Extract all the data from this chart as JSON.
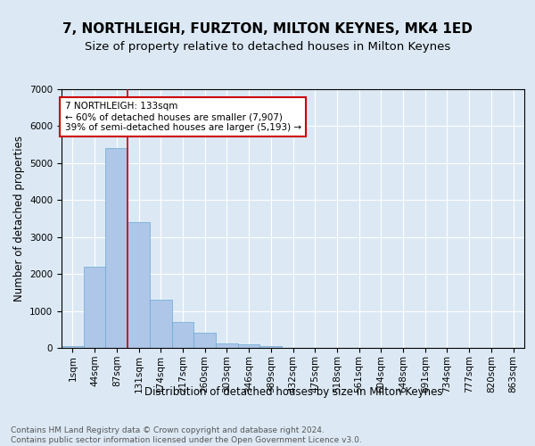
{
  "title1": "7, NORTHLEIGH, FURZTON, MILTON KEYNES, MK4 1ED",
  "title2": "Size of property relative to detached houses in Milton Keynes",
  "xlabel": "Distribution of detached houses by size in Milton Keynes",
  "ylabel": "Number of detached properties",
  "categories": [
    "1sqm",
    "44sqm",
    "87sqm",
    "131sqm",
    "174sqm",
    "217sqm",
    "260sqm",
    "303sqm",
    "346sqm",
    "389sqm",
    "432sqm",
    "475sqm",
    "518sqm",
    "561sqm",
    "604sqm",
    "648sqm",
    "691sqm",
    "734sqm",
    "777sqm",
    "820sqm",
    "863sqm"
  ],
  "values": [
    50,
    2200,
    5400,
    3400,
    1300,
    700,
    400,
    130,
    100,
    50,
    0,
    0,
    0,
    0,
    0,
    0,
    0,
    0,
    0,
    0,
    0
  ],
  "bar_color": "#aec6e8",
  "bar_edge_color": "#6aaad4",
  "vline_x": 3,
  "vline_color": "#cc0000",
  "annotation_text": "7 NORTHLEIGH: 133sqm\n← 60% of detached houses are smaller (7,907)\n39% of semi-detached houses are larger (5,193) →",
  "annotation_box_color": "#ffffff",
  "annotation_border_color": "#cc0000",
  "ylim": [
    0,
    7000
  ],
  "yticks": [
    0,
    1000,
    2000,
    3000,
    4000,
    5000,
    6000,
    7000
  ],
  "background_color": "#dce9f5",
  "plot_bg_color": "#dce9f5",
  "footer_text": "Contains HM Land Registry data © Crown copyright and database right 2024.\nContains public sector information licensed under the Open Government Licence v3.0.",
  "title1_fontsize": 11,
  "title2_fontsize": 9.5,
  "axis_label_fontsize": 8.5,
  "tick_fontsize": 7.5,
  "annotation_fontsize": 7.5,
  "footer_fontsize": 6.5
}
